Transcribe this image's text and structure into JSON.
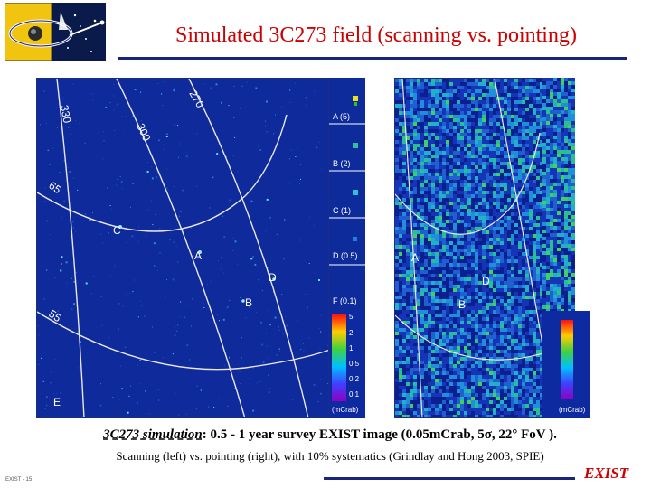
{
  "title": "Simulated 3C273 field (scanning vs. pointing)",
  "colors": {
    "title": "#cc0000",
    "rule": "#1a237e",
    "brand": "#cc0000",
    "map_bg": "#0f2a9a"
  },
  "left_map": {
    "grid_labels": [
      "330",
      "270",
      "300",
      "65",
      "55"
    ],
    "source_labels": [
      "C",
      "A",
      "D",
      "B",
      "E"
    ]
  },
  "left_strip": {
    "cells": [
      {
        "label": "A (5)"
      },
      {
        "label": "B (2)"
      },
      {
        "label": "C (1)"
      },
      {
        "label": "D (0.5)"
      },
      {
        "label": "F (0.1)"
      }
    ]
  },
  "left_colorbar": {
    "ticks": [
      "5",
      "2",
      "1",
      "0.5",
      "0.2",
      "0.1"
    ],
    "unit": "(mCrab)"
  },
  "right_map": {
    "source_labels": [
      "A",
      "D",
      "B"
    ]
  },
  "right_colorbar": {
    "unit": "(mCrab)"
  },
  "caption": {
    "line1_prefix": "3C273 simulation",
    "line1_rest": ": 0.5 - 1 year survey EXIST image (0.05mCrab, 5σ, 22° FoV ).",
    "line2": "Scanning (left) vs. pointing (right), with 10% systematics (Grindlay and Hong 2003, SPIE)"
  },
  "footer": {
    "left_text": "EXIST - 15",
    "brand": "EXIST"
  }
}
